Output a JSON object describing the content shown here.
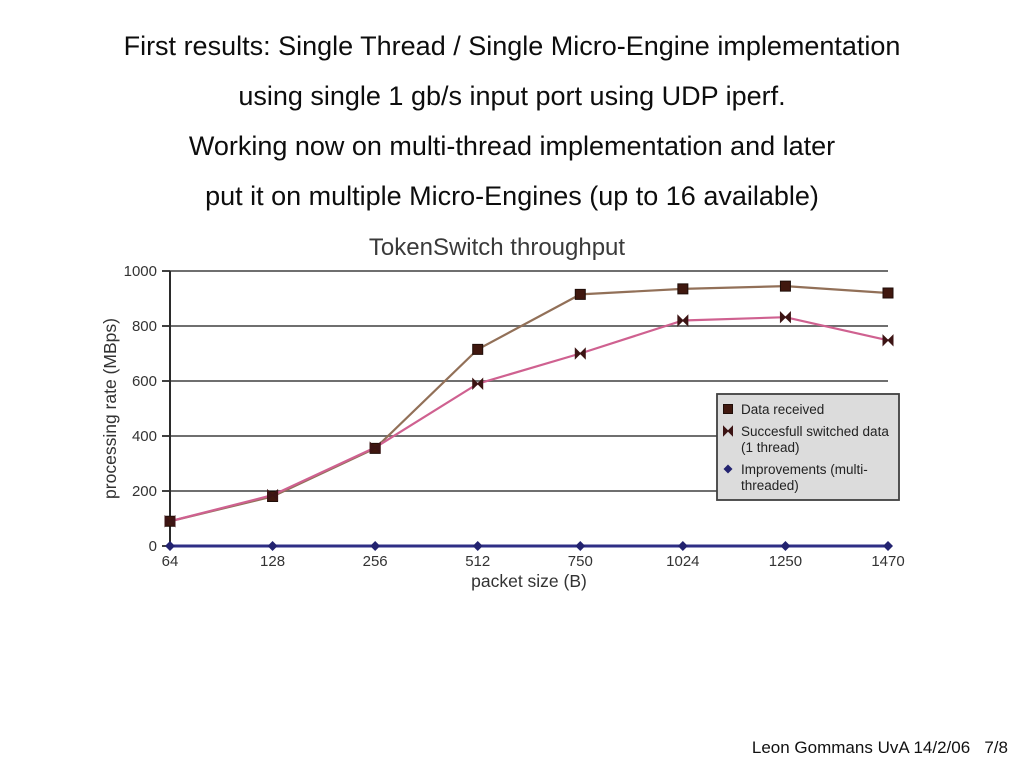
{
  "slide": {
    "title_lines": [
      "First results: Single Thread / Single Micro-Engine implementation",
      "using single 1 gb/s input port using UDP iperf.",
      "Working now on multi-thread implementation and later",
      "put it on multiple Micro-Engines (up to 16 available)"
    ],
    "footer": "Leon Gommans UvA 14/2/06   7/8"
  },
  "chart_data": {
    "type": "line",
    "title": "TokenSwitch throughput",
    "xlabel": "packet size (B)",
    "ylabel": "processing rate (MBps)",
    "categories": [
      "64",
      "128",
      "256",
      "512",
      "750",
      "1024",
      "1250",
      "1470"
    ],
    "ylim": [
      0,
      1000
    ],
    "ytick_step": 200,
    "grid": "horizontal",
    "legend_position": "inside-right",
    "series": [
      {
        "name": "Data received",
        "label_lines": [
          "Data received"
        ],
        "marker": "square",
        "line_color": "#927058",
        "marker_color": "#40180f",
        "values": [
          90,
          180,
          355,
          715,
          915,
          935,
          945,
          920
        ]
      },
      {
        "name": "Succesfull switched data (1 thread)",
        "label_lines": [
          "Succesfull switched data",
          "(1 thread)"
        ],
        "marker": "bowtie",
        "line_color": "#cf6190",
        "marker_color": "#3c1414",
        "values": [
          90,
          185,
          358,
          590,
          700,
          820,
          832,
          748
        ]
      },
      {
        "name": "Improvements (multi-threaded)",
        "label_lines": [
          "Improvements (multi-",
          "threaded)"
        ],
        "marker": "diamond",
        "line_color": "#2e2e85",
        "marker_color": "#232370",
        "values": [
          0,
          0,
          0,
          0,
          0,
          0,
          0,
          0
        ]
      }
    ],
    "colors": {
      "gridline": "#6f6f6f",
      "axis": "#2b2b2b",
      "tick_text": "#333333",
      "title_text": "#3a3a3a",
      "legend_bg": "#dcdcdc",
      "legend_border": "#404040",
      "legend_text": "#222222"
    }
  }
}
